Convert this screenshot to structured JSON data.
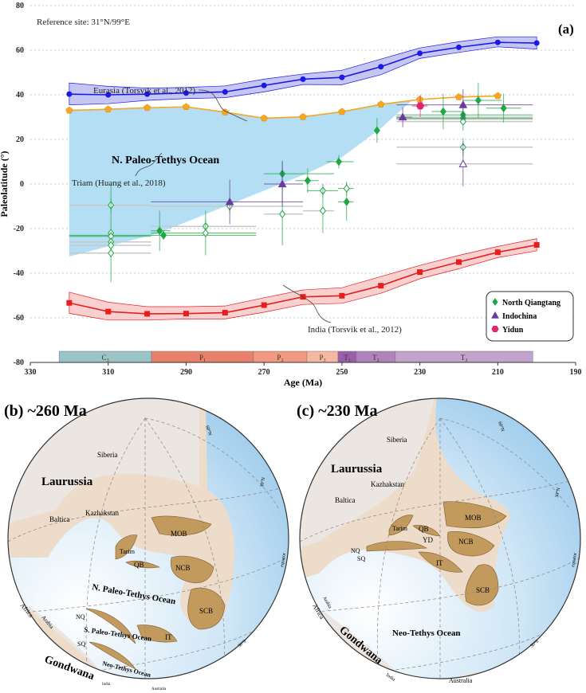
{
  "panel_a": {
    "reference_site": "Reference site:  31°N/99°E",
    "panel_label": "(a)",
    "ocean_label": "N. Paleo-Tethys Ocean",
    "annotations": {
      "eurasia": "Eurasia (Torsvik et al., 2012)",
      "triam": "Triam (Huang et al., 2018)",
      "india": "India (Torsvik et al., 2012)"
    },
    "legend": [
      {
        "name": "North Qiangtang",
        "symbol": "diamond",
        "color": "#1fa845"
      },
      {
        "name": "Indochina",
        "symbol": "triangle",
        "color": "#6a3a9c"
      },
      {
        "name": "Yidun",
        "symbol": "hexagon",
        "color": "#e0246e"
      }
    ],
    "timescale": [
      {
        "label": "C",
        "sub": "3",
        "start": 322.6,
        "end": 298.9,
        "color": "#9cc4c4"
      },
      {
        "label": "P",
        "sub": "1",
        "start": 298.9,
        "end": 272.7,
        "color": "#e8806a"
      },
      {
        "label": "P",
        "sub": "2",
        "start": 272.7,
        "end": 259,
        "color": "#f19a80"
      },
      {
        "label": "P",
        "sub": "3",
        "start": 259,
        "end": 251,
        "color": "#f7b8a2"
      },
      {
        "label": "T",
        "sub": "1",
        "start": 251,
        "end": 246.3,
        "color": "#9b5ea8"
      },
      {
        "label": "T",
        "sub": "2",
        "start": 246.3,
        "end": 236.3,
        "color": "#b083bb"
      },
      {
        "label": "T",
        "sub": "3",
        "start": 236.3,
        "end": 201,
        "color": "#c2a3cc"
      }
    ]
  },
  "chart_data": {
    "type": "scatter",
    "xlabel": "Age (Ma)",
    "ylabel": "Paleolatitude (°)",
    "xlim": [
      330,
      190
    ],
    "ylim": [
      -80,
      80
    ],
    "xticks": [
      330,
      310,
      290,
      270,
      250,
      230,
      210,
      190
    ],
    "yticks": [
      80,
      60,
      40,
      20,
      0,
      -20,
      -40,
      -60,
      -80
    ],
    "grid": "horizontal dotted",
    "legend_position": "bottom-right",
    "curves": [
      {
        "name": "Eurasia (Torsvik et al., 2012)",
        "color": "#1a1ae6",
        "band_color": "#b8b8f0",
        "ages": [
          320,
          310,
          300,
          290,
          280,
          270,
          260,
          250,
          240,
          230,
          220,
          210,
          200
        ],
        "lat": [
          40.3,
          40,
          40.3,
          40.8,
          41.3,
          44.2,
          47,
          47.8,
          52.6,
          58.6,
          61.3,
          63.5,
          63.2
        ],
        "upper": [
          45.3,
          43.8,
          43,
          43.3,
          44,
          47,
          49.3,
          51,
          56,
          61,
          63.8,
          66,
          66
        ],
        "lower": [
          35.5,
          36,
          37.5,
          38.3,
          38.7,
          41.3,
          44.6,
          44.5,
          49,
          56.3,
          59,
          61.5,
          60.5
        ]
      },
      {
        "name": "Triam (Huang et al., 2018)",
        "color": "#f5a623",
        "ages": [
          320,
          310,
          300,
          290,
          280,
          270,
          260,
          250,
          240,
          230,
          220,
          210
        ],
        "lat": [
          33,
          33.5,
          34.2,
          34.6,
          32.2,
          29.5,
          30.1,
          32.4,
          35.7,
          37.9,
          39,
          39.5
        ]
      },
      {
        "name": "India (Torsvik et al., 2012)",
        "color": "#e61e1e",
        "band_color": "#f7c4c4",
        "ages": [
          320,
          310,
          300,
          290,
          280,
          270,
          260,
          250,
          240,
          230,
          220,
          210,
          200
        ],
        "lat": [
          -53.3,
          -57.2,
          -58.2,
          -58.1,
          -57.7,
          -54.3,
          -50.6,
          -50.1,
          -45.6,
          -39.5,
          -35,
          -30.6,
          -27.3
        ],
        "upper": [
          -48.5,
          -53,
          -55,
          -55,
          -54.7,
          -51,
          -47.5,
          -46.5,
          -41.5,
          -36.5,
          -32,
          -28,
          -24.5
        ],
        "lower": [
          -58,
          -61,
          -61,
          -60.5,
          -60.5,
          -57.5,
          -54,
          -53.5,
          -49,
          -42.5,
          -38,
          -33,
          -30
        ]
      }
    ],
    "ocean_region": {
      "color": "#b3def3",
      "ages": [
        320,
        310,
        300,
        290,
        280,
        270,
        260,
        250,
        240,
        232,
        240,
        250,
        255,
        260,
        270,
        280,
        297,
        320
      ],
      "lat": [
        33,
        33.5,
        34.2,
        34.6,
        32.2,
        29.5,
        30.1,
        32.4,
        35.7,
        37.5,
        25,
        12,
        8,
        4,
        -3,
        -10,
        -22,
        -32.5
      ]
    },
    "reference_bars": [
      {
        "age_min": 320,
        "age_max": 299,
        "lat": -9.5
      },
      {
        "age_min": 320,
        "age_max": 299,
        "lat": -26
      },
      {
        "age_min": 320,
        "age_max": 299,
        "lat": -27.5
      },
      {
        "age_min": 320,
        "age_max": 299,
        "lat": -31
      },
      {
        "age_min": 299,
        "age_max": 272,
        "lat": -19
      },
      {
        "age_min": 299,
        "age_max": 260,
        "lat": -10
      },
      {
        "age_min": 270,
        "age_max": 260,
        "lat": -13.5
      },
      {
        "age_min": 260,
        "age_max": 252,
        "lat": -12
      },
      {
        "age_min": 236,
        "age_max": 201,
        "lat": 28
      },
      {
        "age_min": 236,
        "age_max": 201,
        "lat": 29
      },
      {
        "age_min": 236,
        "age_max": 201,
        "lat": 30
      },
      {
        "age_min": 236,
        "age_max": 201,
        "lat": 16.5
      },
      {
        "age_min": 236,
        "age_max": 201,
        "lat": 9
      }
    ],
    "series": [
      {
        "name": "North Qiangtang",
        "marker": "diamond",
        "color": "#1fa845",
        "points": [
          {
            "age": 296.8,
            "lat": -21,
            "lat_err": 9,
            "age_min": 299,
            "age_max": 294,
            "filled": true
          },
          {
            "age": 295.8,
            "lat": -23,
            "lat_err": 2,
            "age_min": 320,
            "age_max": 272,
            "filled": true
          },
          {
            "age": 265.3,
            "lat": 4.6,
            "lat_err": 6,
            "age_min": 270,
            "age_max": 252,
            "filled": true
          },
          {
            "age": 258.8,
            "lat": 1.5,
            "lat_err": 5.5,
            "age_min": 262,
            "age_max": 256,
            "filled": true
          },
          {
            "age": 250.8,
            "lat": 10,
            "lat_err": 3,
            "age_min": 254,
            "age_max": 247,
            "filled": true
          },
          {
            "age": 248.8,
            "lat": -8,
            "lat_err": 8.5,
            "age_min": 251,
            "age_max": 247,
            "filled": true
          },
          {
            "age": 241,
            "lat": 24,
            "lat_err": 5.5,
            "age_min": 241,
            "age_max": 241,
            "filled": true
          },
          {
            "age": 224,
            "lat": 32.5,
            "lat_err": 8,
            "age_min": 227,
            "age_max": 219,
            "filled": true
          },
          {
            "age": 218.9,
            "lat": 31,
            "lat_err": 3,
            "age_min": 236,
            "age_max": 201,
            "filled": true
          },
          {
            "age": 218.9,
            "lat": 29.5,
            "lat_err": 3,
            "age_min": 236,
            "age_max": 201,
            "filled": true
          },
          {
            "age": 215,
            "lat": 37.5,
            "lat_err": 8,
            "age_min": 219,
            "age_max": 209,
            "filled": true
          },
          {
            "age": 208.5,
            "lat": 34,
            "lat_err": 6.5,
            "age_min": 213,
            "age_max": 204,
            "filled": true
          },
          {
            "age": 309.3,
            "lat": -9.5,
            "lat_err": 3,
            "age_min": 309.3,
            "age_max": 309.3,
            "filled": false
          },
          {
            "age": 309.3,
            "lat": -22,
            "lat_err": 22,
            "age_min": 309.3,
            "age_max": 309.3,
            "filled": false
          },
          {
            "age": 309.3,
            "lat": -23.5,
            "lat_err": 2,
            "age_min": 320,
            "age_max": 299,
            "filled": false
          },
          {
            "age": 309.3,
            "lat": -26,
            "lat_err": 2,
            "age_min": 309.3,
            "age_max": 309.3,
            "filled": false
          },
          {
            "age": 309.3,
            "lat": -27.5,
            "lat_err": 2,
            "age_min": 309.3,
            "age_max": 309.3,
            "filled": false
          },
          {
            "age": 309.3,
            "lat": -31,
            "lat_err": 2,
            "age_min": 309.3,
            "age_max": 309.3,
            "filled": false
          },
          {
            "age": 285,
            "lat": -19,
            "lat_err": 3,
            "age_min": 285,
            "age_max": 285,
            "filled": false
          },
          {
            "age": 285,
            "lat": -22,
            "lat_err": 10,
            "age_min": 299,
            "age_max": 272,
            "filled": false
          },
          {
            "age": 278.8,
            "lat": -10,
            "lat_err": 3,
            "age_min": 278.8,
            "age_max": 278.8,
            "filled": false
          },
          {
            "age": 265.3,
            "lat": -13.5,
            "lat_err": 14,
            "age_min": 265.3,
            "age_max": 265.3,
            "filled": false
          },
          {
            "age": 254.9,
            "lat": -3,
            "lat_err": 3,
            "age_min": 259,
            "age_max": 251,
            "filled": false
          },
          {
            "age": 254.9,
            "lat": -12,
            "lat_err": 10,
            "age_min": 254.9,
            "age_max": 254.9,
            "filled": false
          },
          {
            "age": 248.8,
            "lat": -2,
            "lat_err": 3,
            "age_min": 251,
            "age_max": 247,
            "filled": false
          },
          {
            "age": 218.9,
            "lat": 28,
            "lat_err": 4,
            "age_min": 218.9,
            "age_max": 218.9,
            "filled": false
          },
          {
            "age": 218.9,
            "lat": 16.5,
            "lat_err": 4,
            "age_min": 218.9,
            "age_max": 218.9,
            "filled": false
          }
        ]
      },
      {
        "name": "Indochina",
        "marker": "triangle",
        "color": "#6a3a9c",
        "points": [
          {
            "age": 278.8,
            "lat": -8,
            "lat_err": 10,
            "age_min": 299,
            "age_max": 260,
            "filled": true
          },
          {
            "age": 265.3,
            "lat": 0,
            "lat_err": 10,
            "age_min": 270,
            "age_max": 260,
            "filled": true
          },
          {
            "age": 234.4,
            "lat": 30,
            "lat_err": 4.5,
            "age_min": 236,
            "age_max": 232,
            "filled": true
          },
          {
            "age": 218.9,
            "lat": 35.5,
            "lat_err": 7,
            "age_min": 236,
            "age_max": 201,
            "filled": true
          },
          {
            "age": 218.9,
            "lat": 9,
            "lat_err": 10,
            "age_min": 218.9,
            "age_max": 218.9,
            "filled": false
          }
        ]
      },
      {
        "name": "Yidun",
        "marker": "hexagon",
        "color": "#e0246e",
        "points": [
          {
            "age": 229.9,
            "lat": 35,
            "lat_err": 5,
            "age_min": 232,
            "age_max": 228,
            "filled": true
          }
        ]
      }
    ]
  },
  "panel_b": {
    "title": "(b) ~260 Ma",
    "labels": {
      "laurussia": "Laurussia",
      "siberia": "Siberia",
      "baltica": "Baltica",
      "kazakhstan": "Kazhakstan",
      "mob": "MOB",
      "tarim": "Tarim",
      "qb": "QB",
      "ncb": "NCB",
      "scb": "SCB",
      "it": "IT",
      "nq": "NQ",
      "sq": "SQ",
      "npt": "N. Paleo-Tethys Ocean",
      "spt": "S. Paleo-Tethys Ocean",
      "nt": "Neo-Tethys Ocean",
      "gondwana": "Gondwana",
      "africa": "Africa",
      "arabia": "Arabia",
      "india": "India",
      "australia": "Australia",
      "lat60": "60°N",
      "lat30": "30°N",
      "equator": "equator",
      "lat30s": "30°S"
    }
  },
  "panel_c": {
    "title": "(c) ~230 Ma",
    "labels": {
      "laurussia": "Laurussia",
      "siberia": "Siberia",
      "baltica": "Baltica",
      "kazakhstan": "Kazhakstan",
      "mob": "MOB",
      "tarim": "Tarim",
      "qb": "QB",
      "yd": "YD",
      "ncb": "NCB",
      "scb": "SCB",
      "it": "IT",
      "nq": "NQ",
      "sq": "SQ",
      "nt": "Neo-Tethys Ocean",
      "gondwana": "Gondwana",
      "africa": "Africa",
      "arabia": "Arabia",
      "india": "India",
      "australia": "Australia",
      "lat60": "60°N",
      "lat30": "30°N",
      "equator": "equator",
      "lat30s": "30°S"
    }
  }
}
